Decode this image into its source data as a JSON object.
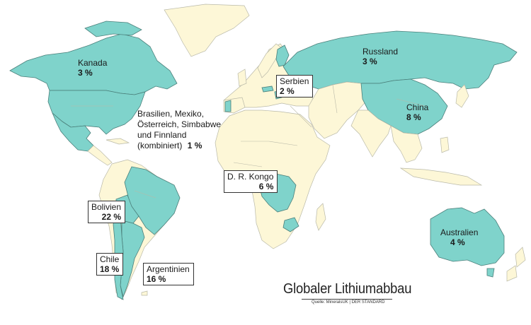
{
  "title": "Globaler Lithiumabbau",
  "source": "Quelle: MineralsUK | DER STANDARD",
  "colors": {
    "highlight": "#7fd3cb",
    "land": "#fdf7d7",
    "ocean": "#ffffff",
    "border": "#b9b9a8"
  },
  "labels": {
    "kanada": {
      "name": "Kanada",
      "value": "3 %"
    },
    "russland": {
      "name": "Russland",
      "value": "3 %"
    },
    "serbien": {
      "name": "Serbien",
      "value": "2 %"
    },
    "china": {
      "name": "China",
      "value": "8 %"
    },
    "kombiniert": {
      "line1": "Brasilien, Mexiko,",
      "line2": "Österreich, Simbabwe",
      "line3": "und Finnland",
      "line4": "(kombiniert)",
      "value": "1 %"
    },
    "kongo": {
      "name": "D. R. Kongo",
      "value": "6 %"
    },
    "bolivien": {
      "name": "Bolivien",
      "value": "22 %"
    },
    "chile": {
      "name": "Chile",
      "value": "18 %"
    },
    "argentinien": {
      "name": "Argentinien",
      "value": "16 %"
    },
    "australien": {
      "name": "Australien",
      "value": "4 %"
    }
  }
}
